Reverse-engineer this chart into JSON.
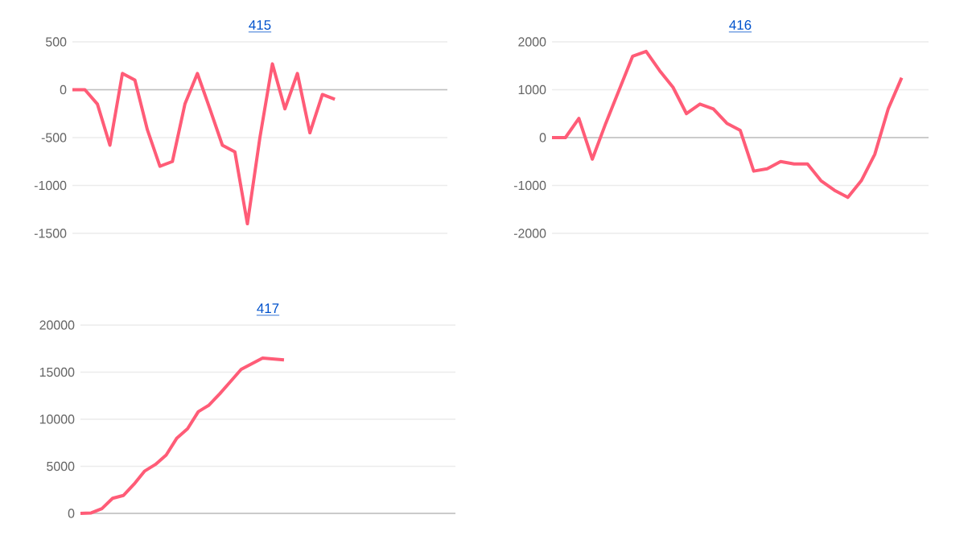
{
  "chart_data": [
    {
      "type": "line",
      "title": "415",
      "categories": [
        null,
        null,
        null,
        null,
        null,
        null,
        null,
        null,
        null,
        null,
        null,
        null,
        null,
        null,
        null,
        null,
        null,
        null,
        null,
        null,
        null,
        null,
        null,
        null,
        null,
        null,
        null,
        null,
        null,
        null,
        null
      ],
      "values": [
        0,
        0,
        -150,
        -580,
        170,
        100,
        -420,
        -800,
        -750,
        -150,
        170,
        -200,
        -580,
        -650,
        -1400,
        -500,
        270,
        -200,
        170,
        -450,
        -50,
        -100,
        null,
        null,
        null,
        null,
        null,
        null,
        null,
        null,
        null
      ],
      "color": "#ff5c77",
      "ylim": [
        -1500,
        500
      ],
      "yticks": [
        -1500,
        -1000,
        -500,
        0,
        500
      ],
      "grid": "y",
      "tick_labels": "y"
    },
    {
      "type": "line",
      "title": "416",
      "categories": [
        null,
        null,
        null,
        null,
        null,
        null,
        null,
        null,
        null,
        null,
        null,
        null,
        null,
        null,
        null,
        null,
        null,
        null,
        null,
        null,
        null,
        null,
        null,
        null,
        null,
        null,
        null,
        null,
        null
      ],
      "values": [
        0,
        0,
        400,
        -450,
        300,
        1000,
        1700,
        1800,
        1400,
        1050,
        500,
        700,
        600,
        300,
        150,
        -700,
        -650,
        -500,
        -550,
        -550,
        -900,
        -1100,
        -1250,
        -900,
        -350,
        600,
        1250,
        null,
        null
      ],
      "color": "#ff5c77",
      "ylim": [
        -2000,
        2000
      ],
      "yticks": [
        -2000,
        -1000,
        0,
        1000,
        2000
      ],
      "grid": "y",
      "tick_labels": "y"
    },
    {
      "type": "line",
      "title": "417",
      "categories": [
        null,
        null,
        null,
        null,
        null,
        null,
        null,
        null,
        null,
        null,
        null,
        null,
        null,
        null,
        null,
        null,
        null,
        null,
        null,
        null,
        null,
        null,
        null,
        null,
        null,
        null,
        null,
        null,
        null,
        null,
        null,
        null,
        null,
        null,
        null,
        null
      ],
      "values": [
        0,
        50,
        500,
        1600,
        1900,
        3100,
        4500,
        5200,
        6200,
        8000,
        9000,
        10800,
        11500,
        12700,
        14000,
        15300,
        15900,
        16500,
        16400,
        16300,
        null,
        null,
        null,
        null,
        null,
        null,
        null,
        null,
        null,
        null,
        null,
        null,
        null,
        null,
        null,
        null
      ],
      "color": "#ff5c77",
      "ylim": [
        0,
        20000
      ],
      "yticks": [
        0,
        5000,
        10000,
        15000,
        20000
      ],
      "grid": "y",
      "tick_labels": "y"
    }
  ]
}
